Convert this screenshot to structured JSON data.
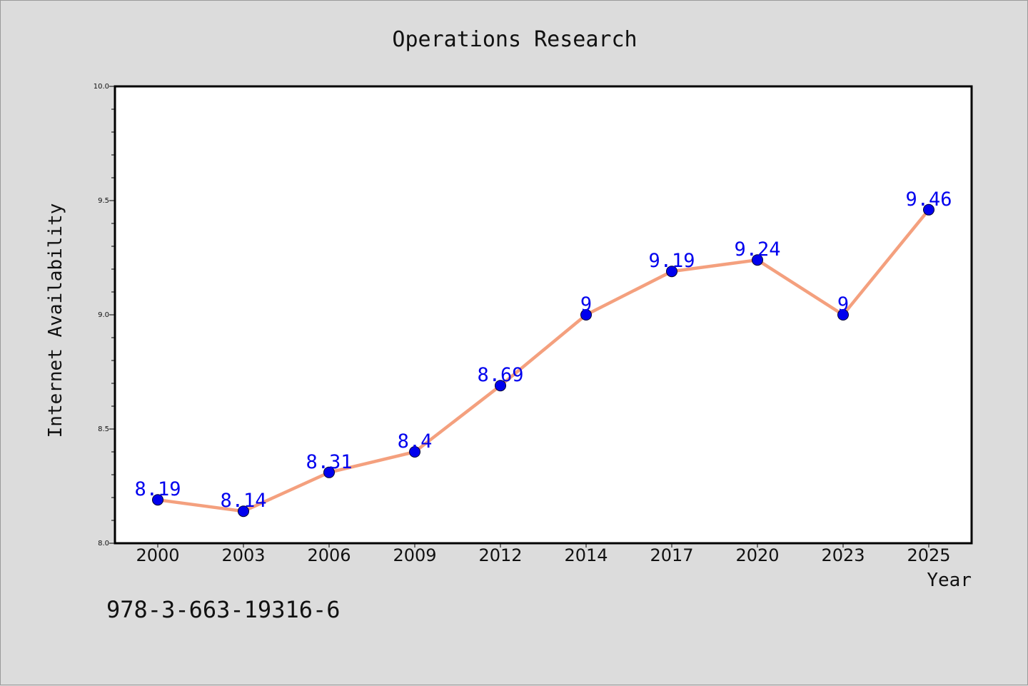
{
  "chart_data": {
    "type": "line",
    "title": "Operations Research",
    "xlabel": "Year",
    "ylabel": "Internet Availability",
    "categories": [
      "2000",
      "2003",
      "2006",
      "2009",
      "2012",
      "2014",
      "2017",
      "2020",
      "2023",
      "2025"
    ],
    "series": [
      {
        "values": [
          8.19,
          8.14,
          8.31,
          8.4,
          8.69,
          9,
          9.19,
          9.24,
          9,
          9.46
        ],
        "labels": [
          "8.19",
          "8.14",
          "8.31",
          "8.4",
          "8.69",
          "9",
          "9.19",
          "9.24",
          "9",
          "9.46"
        ],
        "line_color": "#f4a07e",
        "marker_color": "#0000ee"
      }
    ],
    "ylim": [
      8.0,
      10.0
    ],
    "yticks": [
      "8.0",
      "8.5",
      "9.0",
      "9.5",
      "10.0"
    ],
    "grid": false,
    "legend": "none"
  },
  "footer_text": "978-3-663-19316-6",
  "colors": {
    "background": "#dcdcdc",
    "plot_background": "#ffffff",
    "data_label": "#0000ee"
  }
}
